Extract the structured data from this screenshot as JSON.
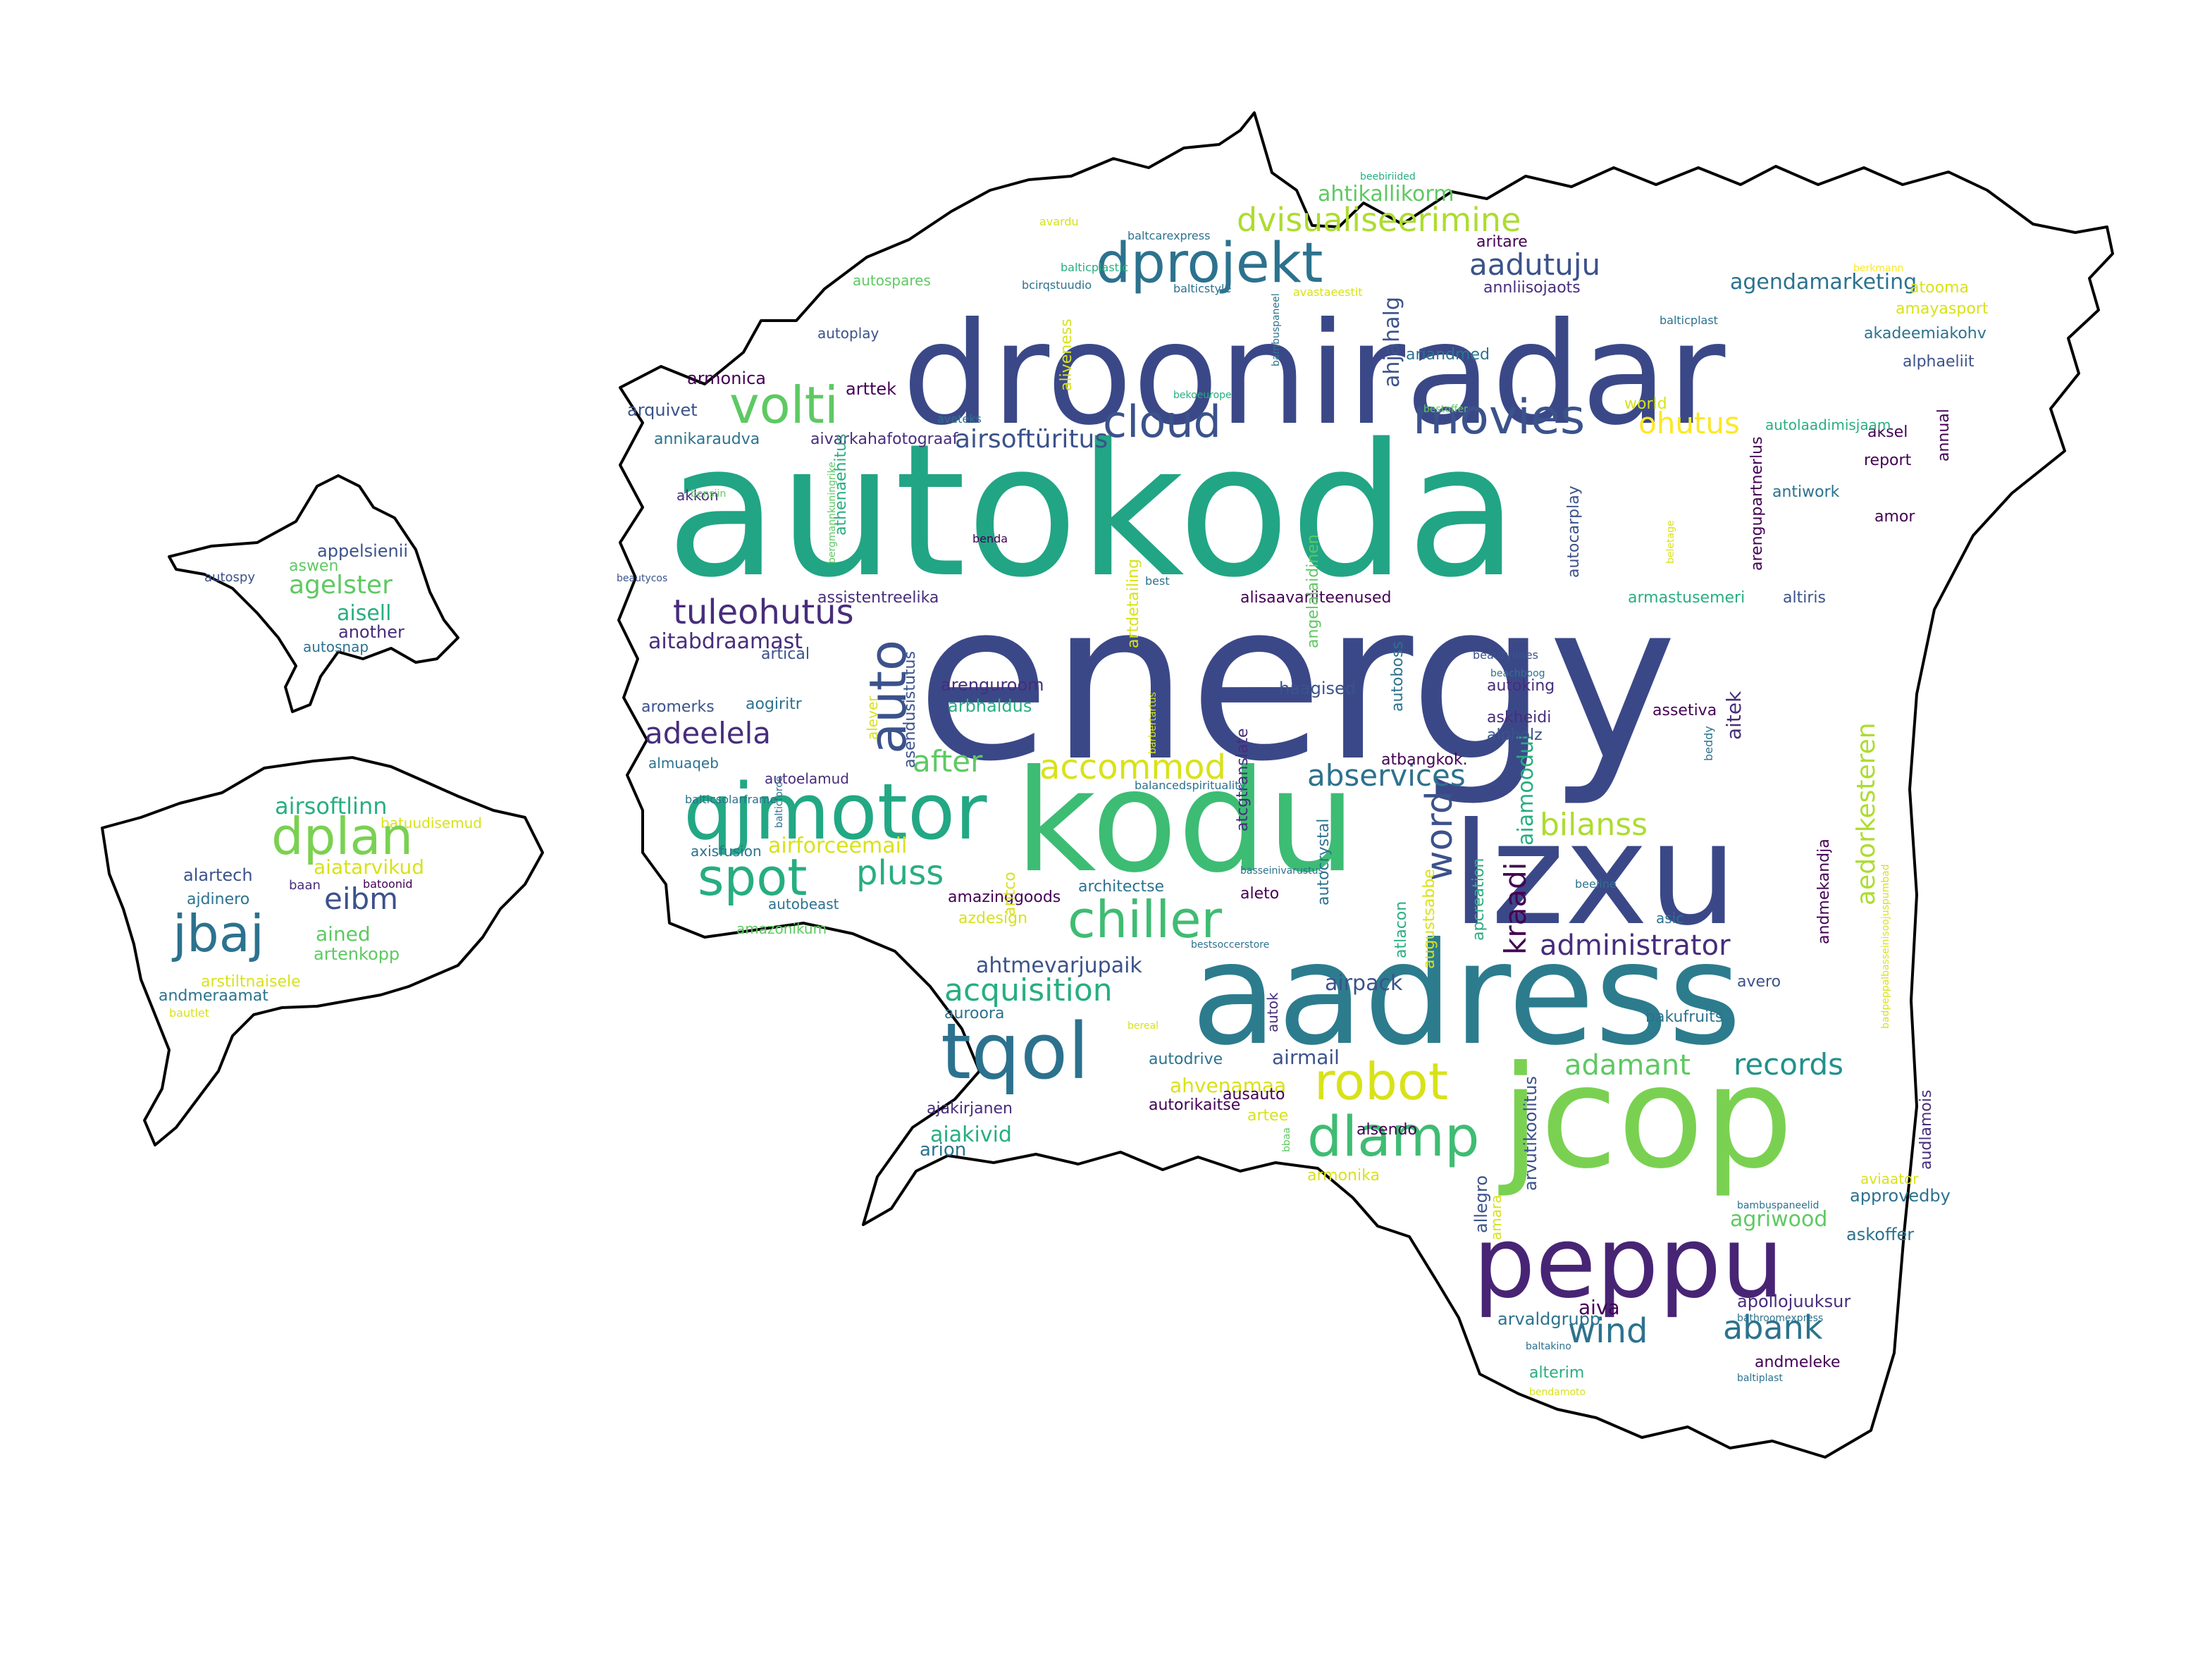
{
  "word_cloud": {
    "words": [
      "autokoda",
      "energy",
      "drooniradar",
      "aadress",
      "jcop",
      "lzxu",
      "kodu",
      "peppu",
      "qjmotor",
      "tqol",
      "dprojekt",
      "dlamp",
      "volti",
      "chiller",
      "robot",
      "movies",
      "cloud",
      "spot",
      "auto",
      "word",
      "dvisualiseerimine",
      "tuleohutus",
      "accommod",
      "abservices",
      "pluss",
      "acquisition",
      "adeelela",
      "bilanss",
      "records",
      "wind",
      "abank",
      "aadutuju",
      "ohutus",
      "adamant",
      "after",
      "kraadi",
      "administrator",
      "airsoftüritus",
      "aedorkesteren",
      "ahtikallikorm",
      "agendamarketing",
      "aitabdraamast",
      "airforceemail",
      "ahtmevarjupaik",
      "aiamoodul",
      "airpack",
      "agriwood",
      "aiakivid",
      "aiva",
      "airmail",
      "ahvenamaa",
      "ahjahalg",
      "arvaldgrupp",
      "apollojuuksur",
      "arion",
      "arttek",
      "armonica",
      "arquivet",
      "annikaraudva",
      "aivarkahafotograaf",
      "akkon",
      "athenaehitus",
      "assistentreelika",
      "alisaavariiteenused",
      "armastusemeri",
      "altiris",
      "aitek",
      "autoking",
      "askheidi",
      "alpholz",
      "atbangkok.",
      "haagised",
      "arenguroom",
      "arbhaldus",
      "aogiritr",
      "alever",
      "asendusistutus",
      "aromerks",
      "artical",
      "almuaqeb",
      "autoelamud",
      "axisfusion",
      "autobeast",
      "amazonikum",
      "amazinggoods",
      "architectse",
      "aleto",
      "azdesign",
      "auroora",
      "autodrive",
      "autorikaitse",
      "ausauto",
      "artee",
      "ajakirjanen",
      "armonika",
      "alsendo",
      "arvutikoolitus",
      "allegro",
      "amara",
      "approvedby",
      "askoffer",
      "bambuspaneelid",
      "aviaator",
      "audlamois",
      "avero",
      "bakufruits",
      "asic",
      "beeline",
      "apcreation",
      "augustsabbe",
      "atlacon",
      "autocrystal",
      "atcgtranslate",
      "aritco",
      "andmekandja",
      "beddy",
      "assetiva",
      "autoboss",
      "angelalaidinen",
      "autocarplay",
      "arengupartnerlus",
      "antiwork",
      "report",
      "amor",
      "annual",
      "aksel",
      "akadeemiakohv",
      "alphaeliit",
      "amayasport",
      "atooma",
      "berkmann",
      "aritare",
      "annliisojaots",
      "ariandmed",
      "world",
      "bestoffer",
      "avastaeestit",
      "balticstyle",
      "balticplast",
      "balticplastic",
      "bcirqstuudio",
      "autospares",
      "autoplay",
      "aliveness",
      "aveteks",
      "avardu",
      "baltcarexpress",
      "beebiriided",
      "bekoeurope",
      "bambuspaneel",
      "artdetailing",
      "best",
      "benda",
      "beautycos",
      "bensiin",
      "bergmannkuningrike",
      "beletage",
      "autolaadimisjaam",
      "beautylines",
      "beachboog",
      "barbertartus",
      "balancedspirituality",
      "basseinivarustus",
      "bestsoccerstore",
      "bereal",
      "bbaa",
      "badpeppalbasseinisoojuspumbad",
      "alterim",
      "andmeleke",
      "baltakino",
      "bathroomexpress",
      "baltiplast",
      "bendamoto",
      "balticsolarframe",
      "balticforce",
      "autok",
      "appelsienii",
      "aswen",
      "agelster",
      "autospy",
      "aisell",
      "another",
      "autosnap",
      "airsoftlinn",
      "batuudisemud",
      "dplan",
      "aiatarvikud",
      "alartech",
      "ajdinero",
      "baan",
      "batoonid",
      "eibm",
      "jbaj",
      "ained",
      "artenkopp",
      "arstiltnaisele",
      "andmeraamat",
      "bautlet"
    ],
    "palette": {
      "dark_purple": "#440154",
      "indigo": "#472d7b",
      "slate_blue": "#3b528b",
      "steel_blue": "#2c728e",
      "teal": "#21918c",
      "sea_green": "#28ae80",
      "jade": "#1fa187",
      "green": "#5ec962",
      "lime": "#addc30",
      "yellow": "#fde725",
      "outline": "#000000",
      "background": "#ffffff"
    }
  }
}
